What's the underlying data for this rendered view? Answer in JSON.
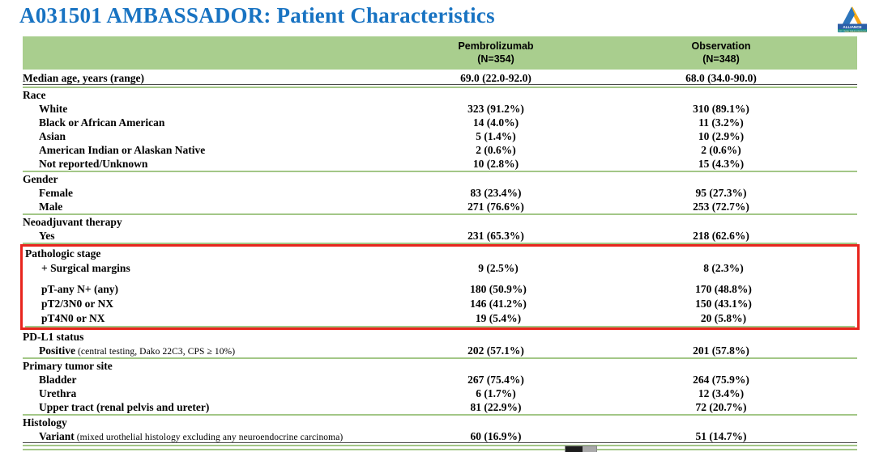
{
  "slide": {
    "title": "A031501 AMBASSADOR: Patient Characteristics",
    "logo": {
      "text": "ALLIANCE",
      "subtext": "FOR CLINICAL TRIALS IN ONCOLOGY"
    },
    "colors": {
      "title_blue": "#1873C2",
      "header_green": "#A9CE8E",
      "line_green": "#A3C787",
      "highlight_red": "#E8251D"
    }
  },
  "table": {
    "columns": [
      {
        "name": "Pembrolizumab",
        "n": "(N=354)"
      },
      {
        "name": "Observation",
        "n": "(N=348)"
      }
    ],
    "rows": [
      {
        "type": "data",
        "label": "Median age, years (range)",
        "indent": 0,
        "values": [
          "69.0 (22.0-92.0)",
          "68.0 (34.0-90.0)"
        ],
        "underline": true,
        "sep": "green"
      },
      {
        "type": "section",
        "label": "Race"
      },
      {
        "type": "data",
        "label": "White",
        "indent": 1,
        "values": [
          "323 (91.2%)",
          "310 (89.1%)"
        ]
      },
      {
        "type": "data",
        "label": "Black or African American",
        "indent": 1,
        "values": [
          "14 (4.0%)",
          "11 (3.2%)"
        ]
      },
      {
        "type": "data",
        "label": "Asian",
        "indent": 1,
        "values": [
          "5 (1.4%)",
          "10 (2.9%)"
        ]
      },
      {
        "type": "data",
        "label": "American Indian or Alaskan Native",
        "indent": 1,
        "values": [
          "2 (0.6%)",
          "2 (0.6%)"
        ]
      },
      {
        "type": "data",
        "label": "Not reported/Unknown",
        "indent": 1,
        "values": [
          "10 (2.8%)",
          "15 (4.3%)"
        ],
        "sep": "green"
      },
      {
        "type": "section",
        "label": "Gender"
      },
      {
        "type": "data",
        "label": "Female",
        "indent": 1,
        "values": [
          "83 (23.4%)",
          "95 (27.3%)"
        ]
      },
      {
        "type": "data",
        "label": "Male",
        "indent": 1,
        "values": [
          "271 (76.6%)",
          "253 (72.7%)"
        ],
        "sep": "green"
      },
      {
        "type": "section",
        "label": "Neoadjuvant therapy"
      },
      {
        "type": "data",
        "label": "Yes",
        "indent": 1,
        "values": [
          "231 (65.3%)",
          "218 (62.6%)"
        ],
        "sep": "green"
      },
      {
        "type": "section",
        "label": "Pathologic stage",
        "box": true
      },
      {
        "type": "data",
        "label": "+ Surgical margins",
        "indent": 1,
        "values": [
          "9 (2.5%)",
          "8 (2.3%)"
        ],
        "box": true,
        "gap": true
      },
      {
        "type": "data",
        "label": "pT-any N+ (any)",
        "indent": 1,
        "values": [
          "180 (50.9%)",
          "170 (48.8%)"
        ],
        "box": true
      },
      {
        "type": "data",
        "label": "pT2/3N0 or NX",
        "indent": 1,
        "values": [
          "146 (41.2%)",
          "150 (43.1%)"
        ],
        "box": true
      },
      {
        "type": "data",
        "label": "pT4N0 or NX",
        "indent": 1,
        "values": [
          "19 (5.4%)",
          "20 (5.8%)"
        ],
        "box": true,
        "sep": "green"
      },
      {
        "type": "section",
        "label": "PD-L1 status"
      },
      {
        "type": "data",
        "label": "Positive",
        "note": "(central testing, Dako 22C3, CPS ≥ 10%)",
        "indent": 1,
        "values": [
          "202 (57.1%)",
          "201 (57.8%)"
        ],
        "sep": "green"
      },
      {
        "type": "section",
        "label": "Primary tumor site"
      },
      {
        "type": "data",
        "label": "Bladder",
        "indent": 1,
        "values": [
          "267 (75.4%)",
          "264 (75.9%)"
        ]
      },
      {
        "type": "data",
        "label": "Urethra",
        "indent": 1,
        "values": [
          "6 (1.7%)",
          "12 (3.4%)"
        ]
      },
      {
        "type": "data",
        "label": "Upper tract (renal pelvis and ureter)",
        "indent": 1,
        "values": [
          "81 (22.9%)",
          "72 (20.7%)"
        ],
        "sep": "green"
      },
      {
        "type": "section",
        "label": "Histology"
      },
      {
        "type": "data",
        "label": "Variant",
        "note": "(mixed urothelial histology excluding any neuroendocrine carcinoma)",
        "indent": 1,
        "values": [
          "60 (16.9%)",
          "51 (14.7%)"
        ],
        "underline": true,
        "sep": "double"
      }
    ]
  }
}
